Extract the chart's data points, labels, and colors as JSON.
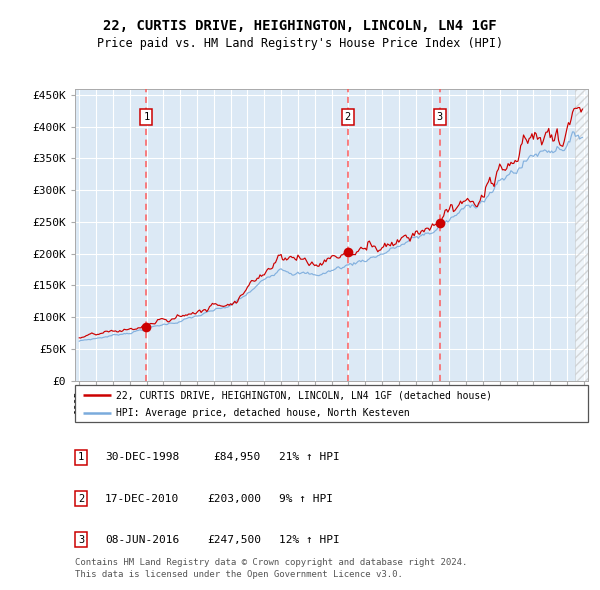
{
  "title": "22, CURTIS DRIVE, HEIGHINGTON, LINCOLN, LN4 1GF",
  "subtitle": "Price paid vs. HM Land Registry's House Price Index (HPI)",
  "ylabel_ticks": [
    "£0",
    "£50K",
    "£100K",
    "£150K",
    "£200K",
    "£250K",
    "£300K",
    "£350K",
    "£400K",
    "£450K"
  ],
  "ytick_values": [
    0,
    50000,
    100000,
    150000,
    200000,
    250000,
    300000,
    350000,
    400000,
    450000
  ],
  "ylim": [
    0,
    460000
  ],
  "sale_dates": [
    "1998-12-30",
    "2010-12-17",
    "2016-06-08"
  ],
  "sale_prices": [
    84950,
    203000,
    247500
  ],
  "sale_labels": [
    "1",
    "2",
    "3"
  ],
  "legend_line1": "22, CURTIS DRIVE, HEIGHINGTON, LINCOLN, LN4 1GF (detached house)",
  "legend_line2": "HPI: Average price, detached house, North Kesteven",
  "footer1": "Contains HM Land Registry data © Crown copyright and database right 2024.",
  "footer2": "This data is licensed under the Open Government Licence v3.0.",
  "table_rows": [
    {
      "num": "1",
      "date": "30-DEC-1998",
      "price": "£84,950",
      "pct": "21% ↑ HPI"
    },
    {
      "num": "2",
      "date": "17-DEC-2010",
      "price": "£203,000",
      "pct": "9% ↑ HPI"
    },
    {
      "num": "3",
      "date": "08-JUN-2016",
      "price": "£247,500",
      "pct": "12% ↑ HPI"
    }
  ],
  "bg_color": "#dce9f5",
  "red_line_color": "#cc0000",
  "blue_line_color": "#7aabdc",
  "grid_color": "#ffffff",
  "dashed_line_color": "#ff5555",
  "marker_color": "#cc0000",
  "box_color": "#cc0000"
}
